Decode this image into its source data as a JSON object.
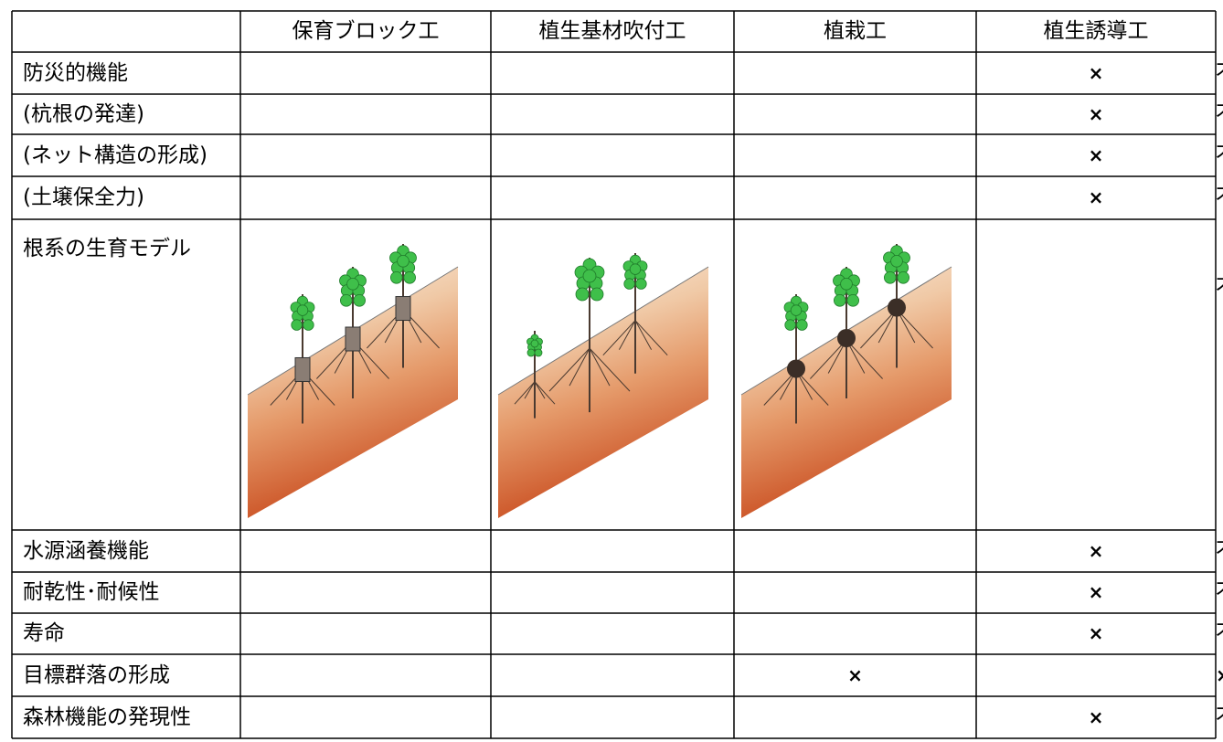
{
  "table": {
    "header": [
      "保育ブロック工",
      "植生基材吹付工",
      "植栽工",
      "植生誘導工"
    ],
    "rows": [
      {
        "label": "防災的機能",
        "cells": [
          null,
          null,
          "×",
          "不安定"
        ]
      },
      {
        "label": "(杭根の発達)",
        "cells": [
          null,
          null,
          "×",
          "不安定"
        ]
      },
      {
        "label": "(ネット構造の形成)",
        "cells": [
          null,
          null,
          "×",
          "不安定"
        ]
      },
      {
        "label": "(土壌保全力)",
        "cells": [
          null,
          null,
          "×",
          "不安定"
        ]
      },
      {
        "label": "根系の生育モデル",
        "cells": [
          null,
          null,
          null,
          "不安定"
        ]
      },
      {
        "label": "水源涵養機能",
        "cells": [
          null,
          null,
          "×",
          "不安定"
        ]
      },
      {
        "label": "耐乾性･耐候性",
        "cells": [
          null,
          null,
          "×",
          "不安定"
        ]
      },
      {
        "label": "寿命",
        "cells": [
          null,
          null,
          "×",
          "不安定"
        ]
      },
      {
        "label": "目標群落の形成",
        "cells": [
          null,
          "×",
          null,
          "×"
        ]
      },
      {
        "label": "森林機能の発現性",
        "cells": [
          null,
          null,
          "×",
          "不安定"
        ]
      }
    ]
  }
}
